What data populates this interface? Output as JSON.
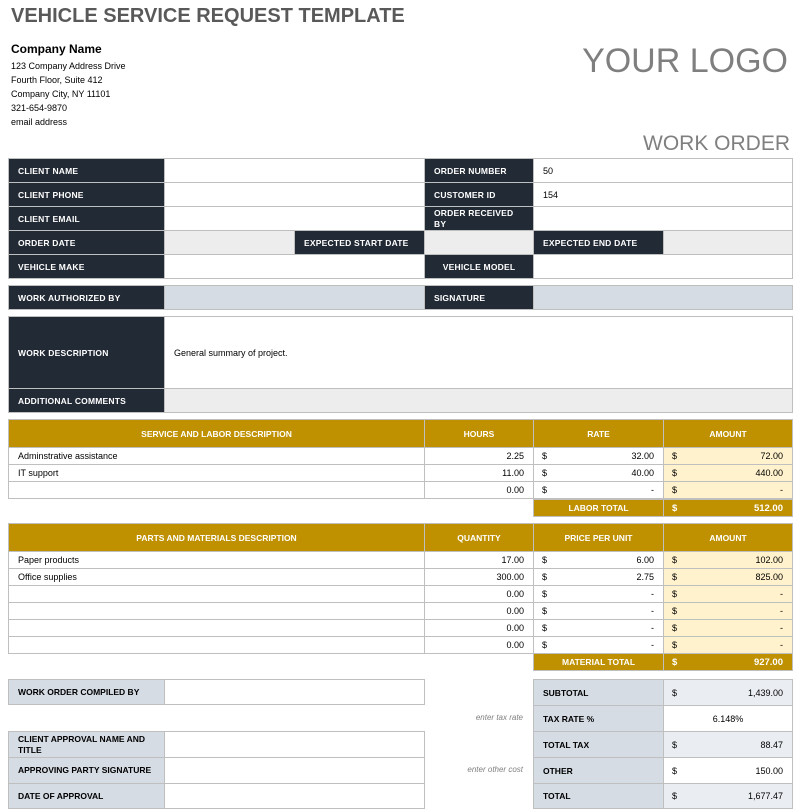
{
  "title": "VEHICLE SERVICE REQUEST TEMPLATE",
  "company": {
    "name": "Company Name",
    "address1": "123 Company Address Drive",
    "address2": "Fourth Floor, Suite 412",
    "city": "Company City, NY  11101",
    "phone": "321-654-9870",
    "email": "email address"
  },
  "logo": "YOUR LOGO",
  "work_order": "WORK ORDER",
  "info": {
    "client_name_label": "CLIENT NAME",
    "client_name": "",
    "order_number_label": "ORDER NUMBER",
    "order_number": "50",
    "client_phone_label": "CLIENT PHONE",
    "client_phone": "",
    "customer_id_label": "CUSTOMER ID",
    "customer_id": "154",
    "client_email_label": "CLIENT EMAIL",
    "client_email": "",
    "order_received_label": "ORDER RECEIVED BY",
    "order_received": "",
    "order_date_label": "ORDER DATE",
    "order_date": "",
    "start_date_label": "EXPECTED START DATE",
    "start_date": "",
    "end_date_label": "EXPECTED END DATE",
    "end_date": "",
    "make_label": "VEHICLE MAKE",
    "make": "",
    "model_label": "VEHICLE MODEL",
    "model": "",
    "authorized_label": "WORK AUTHORIZED BY",
    "authorized": "",
    "signature_label": "SIGNATURE",
    "signature": "",
    "description_label": "WORK DESCRIPTION",
    "description": "General summary of project.",
    "comments_label": "ADDITIONAL COMMENTS",
    "comments": ""
  },
  "labor": {
    "headers": [
      "SERVICE AND LABOR DESCRIPTION",
      "HOURS",
      "RATE",
      "AMOUNT"
    ],
    "rows": [
      [
        "Adminstrative assistance",
        "2.25",
        "32.00",
        "72.00"
      ],
      [
        "IT support",
        "11.00",
        "40.00",
        "440.00"
      ],
      [
        "",
        "0.00",
        "-",
        "-"
      ]
    ],
    "total_label": "LABOR TOTAL",
    "total": "512.00"
  },
  "parts": {
    "headers": [
      "PARTS AND MATERIALS DESCRIPTION",
      "QUANTITY",
      "PRICE PER UNIT",
      "AMOUNT"
    ],
    "rows": [
      [
        "Paper products",
        "17.00",
        "6.00",
        "102.00"
      ],
      [
        "Office supplies",
        "300.00",
        "2.75",
        "825.00"
      ],
      [
        "",
        "0.00",
        "-",
        "-"
      ],
      [
        "",
        "0.00",
        "-",
        "-"
      ],
      [
        "",
        "0.00",
        "-",
        "-"
      ],
      [
        "",
        "0.00",
        "-",
        "-"
      ]
    ],
    "total_label": "MATERIAL TOTAL",
    "total": "927.00"
  },
  "currency": "$",
  "footer": {
    "compiled_label": "WORK ORDER COMPILED BY",
    "approval_label": "CLIENT APPROVAL NAME AND TITLE",
    "approving_sig_label": "APPROVING PARTY SIGNATURE",
    "date_label": "DATE OF APPROVAL",
    "tax_hint": "enter tax rate",
    "other_hint": "enter other cost"
  },
  "summary": {
    "subtotal_label": "SUBTOTAL",
    "subtotal": "1,439.00",
    "tax_rate_label": "TAX RATE %",
    "tax_rate": "6.148%",
    "total_tax_label": "TOTAL TAX",
    "total_tax": "88.47",
    "other_label": "OTHER",
    "other": "150.00",
    "total_label": "TOTAL",
    "total": "1,677.47"
  },
  "colors": {
    "dark": "#222a35",
    "gold": "#bf9000",
    "amount_bg": "#fff2cc",
    "blue_gray": "#d6dce4"
  }
}
